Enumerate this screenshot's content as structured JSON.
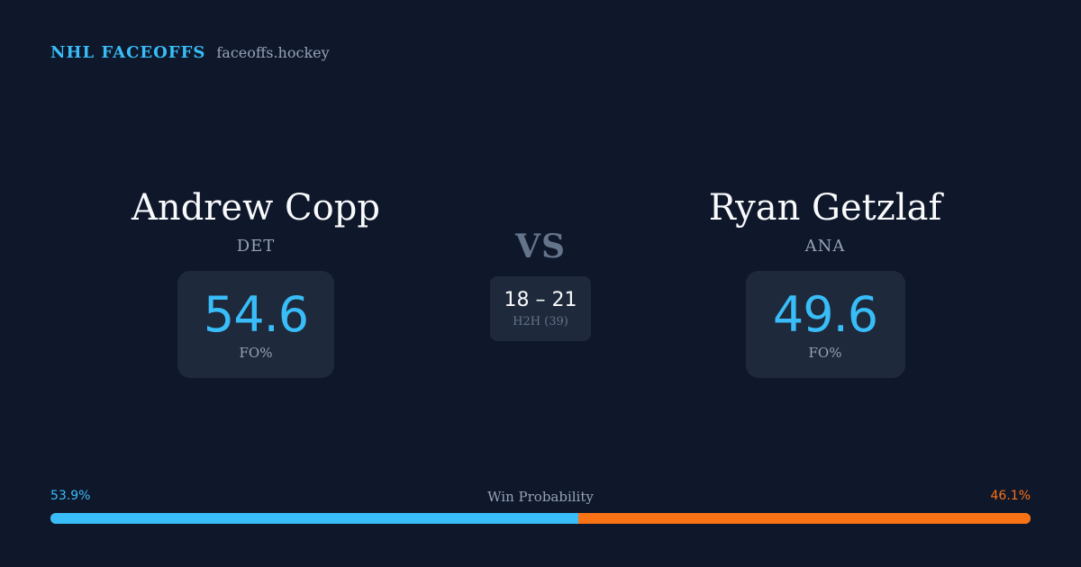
{
  "brand": {
    "title": "NHL FACEOFFS",
    "domain": "faceoffs.hockey"
  },
  "players": [
    {
      "name": "Andrew Copp",
      "team": "DET",
      "fo_pct": "54.6",
      "fo_label": "FO%"
    },
    {
      "name": "Ryan Getzlaf",
      "team": "ANA",
      "fo_pct": "49.6",
      "fo_label": "FO%"
    }
  ],
  "vs_label": "VS",
  "h2h": {
    "score": "18 – 21",
    "label": "H2H (39)"
  },
  "win_probability": {
    "title": "Win Probability",
    "left_label": "53.9%",
    "right_label": "46.1%",
    "left_fraction": 0.539,
    "right_fraction": 0.461
  },
  "colors": {
    "background": "#0f172a",
    "card": "#1e293b",
    "accent_blue": "#38bdf8",
    "accent_orange": "#f97316",
    "muted": "#94a3b8"
  }
}
